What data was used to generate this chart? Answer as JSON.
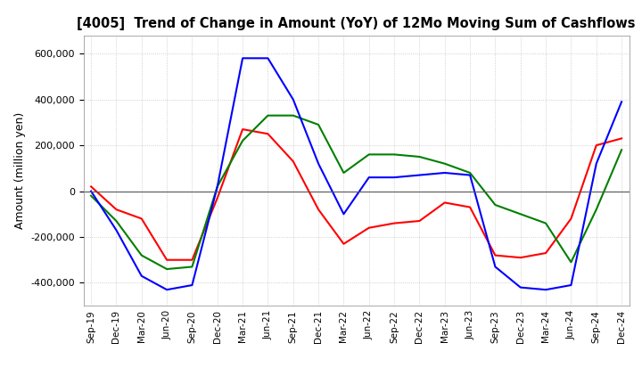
{
  "title": "[4005]  Trend of Change in Amount (YoY) of 12Mo Moving Sum of Cashflows",
  "ylabel": "Amount (million yen)",
  "ylim": [
    -500000,
    680000
  ],
  "yticks": [
    -400000,
    -200000,
    0,
    200000,
    400000,
    600000
  ],
  "background_color": "#ffffff",
  "grid_color": "#aaaaaa",
  "dates": [
    "Sep-19",
    "Dec-19",
    "Mar-20",
    "Jun-20",
    "Sep-20",
    "Dec-20",
    "Mar-21",
    "Jun-21",
    "Sep-21",
    "Dec-21",
    "Mar-22",
    "Jun-22",
    "Sep-22",
    "Dec-22",
    "Mar-23",
    "Jun-23",
    "Sep-23",
    "Dec-23",
    "Mar-24",
    "Jun-24",
    "Sep-24",
    "Dec-24"
  ],
  "operating": [
    20000,
    -80000,
    -120000,
    -300000,
    -300000,
    -30000,
    270000,
    250000,
    130000,
    -80000,
    -230000,
    -160000,
    -140000,
    -130000,
    -50000,
    -70000,
    -280000,
    -290000,
    -270000,
    -120000,
    200000,
    230000
  ],
  "investing": [
    -20000,
    -130000,
    -280000,
    -340000,
    -330000,
    20000,
    220000,
    330000,
    330000,
    290000,
    80000,
    160000,
    160000,
    150000,
    120000,
    80000,
    -60000,
    -100000,
    -140000,
    -310000,
    -80000,
    180000
  ],
  "free": [
    0,
    -170000,
    -370000,
    -430000,
    -410000,
    20000,
    580000,
    580000,
    400000,
    120000,
    -100000,
    60000,
    60000,
    70000,
    80000,
    70000,
    -330000,
    -420000,
    -430000,
    -410000,
    120000,
    390000
  ],
  "operating_color": "#ff0000",
  "investing_color": "#008000",
  "free_color": "#0000ff",
  "line_width": 1.5
}
